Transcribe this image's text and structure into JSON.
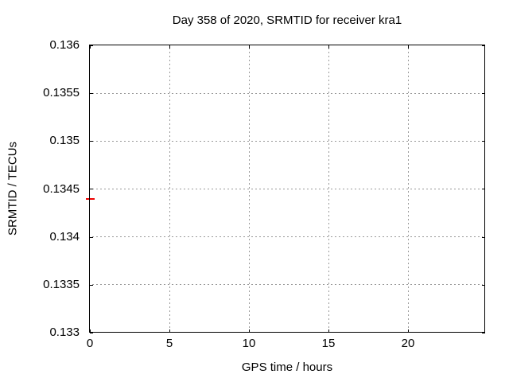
{
  "chart_data": {
    "type": "scatter",
    "title": "Day 358 of 2020, SRMTID for receiver kra1",
    "xlabel": "GPS time / hours",
    "ylabel": "SRMTID / TECUs",
    "xlim": [
      0,
      24.85
    ],
    "ylim": [
      0.133,
      0.136
    ],
    "xticks": [
      0,
      5,
      10,
      15,
      20
    ],
    "xtick_labels": [
      "0",
      "5",
      "10",
      "15",
      "20"
    ],
    "yticks": [
      0.133,
      0.1335,
      0.134,
      0.1345,
      0.135,
      0.1355,
      0.136
    ],
    "ytick_labels": [
      "0.133",
      "0.1335",
      "0.134",
      "0.1345",
      "0.135",
      "0.1355",
      "0.136"
    ],
    "grid": true,
    "grid_style": "dotted",
    "grid_color": "#999999",
    "border_color": "#000000",
    "background_color": "#ffffff",
    "legend": "none",
    "series": [
      {
        "name": "SRMTID",
        "color": "#ee0000",
        "marker": "horizontal-dash",
        "points": [
          {
            "x": 0.0,
            "y": 0.1344
          }
        ]
      }
    ]
  }
}
